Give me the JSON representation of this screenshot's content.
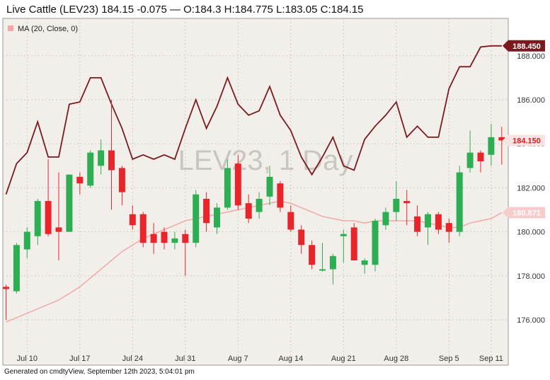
{
  "header": {
    "title": "Live Cattle (LEV23) 184.15 -0.075 — O:184.3 H:184.775 L:183.05 C:184.15"
  },
  "footer": {
    "text": "Generated on cmdtyView, September 12th 2023, 5:04:01 pm"
  },
  "colors": {
    "background": "#f2efea",
    "up": "#2eae52",
    "down": "#e8252a",
    "envelope": "#7a1a1f",
    "ma": "#f0a8a8"
  },
  "chart_data": {
    "type": "candlestick",
    "watermark": "LEV23, 1 Day",
    "legend": [
      {
        "name": "MA (20, Close, 0)"
      }
    ],
    "ylim": [
      174.8,
      189.8
    ],
    "yticks": [
      {
        "value": 176,
        "label": "176.000"
      },
      {
        "value": 178,
        "label": "178.000"
      },
      {
        "value": 180,
        "label": "180.000"
      },
      {
        "value": 182,
        "label": "182.000"
      },
      {
        "value": 184,
        "label": "184.000"
      },
      {
        "value": 186,
        "label": "186.000"
      },
      {
        "value": 188,
        "label": "188.000"
      }
    ],
    "xticks": [
      {
        "index": 2,
        "label": "Jul 10"
      },
      {
        "index": 7,
        "label": "Jul 17"
      },
      {
        "index": 12,
        "label": "Jul 24"
      },
      {
        "index": 17,
        "label": "Jul 31"
      },
      {
        "index": 22,
        "label": "Aug 7"
      },
      {
        "index": 27,
        "label": "Aug 14"
      },
      {
        "index": 32,
        "label": "Aug 21"
      },
      {
        "index": 37,
        "label": "Aug 28"
      },
      {
        "index": 42,
        "label": "Sep 5"
      },
      {
        "index": 46,
        "label": "Sep 11"
      }
    ],
    "candles": [
      {
        "o": 177.5,
        "h": 177.6,
        "l": 176.0,
        "c": 177.4
      },
      {
        "o": 177.3,
        "h": 179.5,
        "l": 177.2,
        "c": 179.4
      },
      {
        "o": 179.2,
        "h": 180.2,
        "l": 178.8,
        "c": 180.0
      },
      {
        "o": 179.8,
        "h": 181.5,
        "l": 179.4,
        "c": 181.4
      },
      {
        "o": 181.4,
        "h": 183.3,
        "l": 179.8,
        "c": 179.9
      },
      {
        "o": 180.2,
        "h": 182.7,
        "l": 178.7,
        "c": 180.0
      },
      {
        "o": 180.0,
        "h": 182.6,
        "l": 180.0,
        "c": 182.6
      },
      {
        "o": 182.5,
        "h": 182.7,
        "l": 181.7,
        "c": 182.2
      },
      {
        "o": 182.1,
        "h": 183.7,
        "l": 182.0,
        "c": 183.6
      },
      {
        "o": 183.0,
        "h": 184.2,
        "l": 182.6,
        "c": 183.7
      },
      {
        "o": 183.7,
        "h": 186.0,
        "l": 181.0,
        "c": 182.8
      },
      {
        "o": 182.9,
        "h": 183.0,
        "l": 181.2,
        "c": 181.8
      },
      {
        "o": 180.8,
        "h": 181.2,
        "l": 180.1,
        "c": 180.3
      },
      {
        "o": 180.8,
        "h": 180.9,
        "l": 179.3,
        "c": 179.5
      },
      {
        "o": 179.9,
        "h": 180.4,
        "l": 179.0,
        "c": 179.5
      },
      {
        "o": 180.0,
        "h": 180.2,
        "l": 179.2,
        "c": 179.5
      },
      {
        "o": 179.5,
        "h": 180.0,
        "l": 179.2,
        "c": 179.7
      },
      {
        "o": 179.9,
        "h": 180.1,
        "l": 178.0,
        "c": 179.5
      },
      {
        "o": 179.5,
        "h": 181.9,
        "l": 179.3,
        "c": 181.7
      },
      {
        "o": 181.5,
        "h": 181.8,
        "l": 180.0,
        "c": 180.4
      },
      {
        "o": 180.2,
        "h": 181.3,
        "l": 179.9,
        "c": 181.1
      },
      {
        "o": 181.1,
        "h": 183.3,
        "l": 181.0,
        "c": 182.9
      },
      {
        "o": 183.1,
        "h": 183.5,
        "l": 181.0,
        "c": 181.2
      },
      {
        "o": 181.3,
        "h": 181.7,
        "l": 180.4,
        "c": 180.6
      },
      {
        "o": 180.9,
        "h": 181.8,
        "l": 180.6,
        "c": 181.5
      },
      {
        "o": 181.6,
        "h": 183.0,
        "l": 181.2,
        "c": 182.5
      },
      {
        "o": 182.2,
        "h": 182.3,
        "l": 180.9,
        "c": 181.1
      },
      {
        "o": 180.9,
        "h": 181.2,
        "l": 180.0,
        "c": 180.1
      },
      {
        "o": 180.1,
        "h": 180.3,
        "l": 179.0,
        "c": 179.4
      },
      {
        "o": 179.4,
        "h": 179.6,
        "l": 178.3,
        "c": 178.5
      },
      {
        "o": 178.3,
        "h": 179.5,
        "l": 178.2,
        "c": 178.3
      },
      {
        "o": 178.3,
        "h": 179.0,
        "l": 177.6,
        "c": 178.9
      },
      {
        "o": 179.8,
        "h": 180.1,
        "l": 178.6,
        "c": 179.9
      },
      {
        "o": 180.2,
        "h": 180.4,
        "l": 178.7,
        "c": 178.7
      },
      {
        "o": 178.5,
        "h": 178.8,
        "l": 178.1,
        "c": 178.7
      },
      {
        "o": 178.5,
        "h": 180.6,
        "l": 178.2,
        "c": 180.5
      },
      {
        "o": 180.3,
        "h": 181.1,
        "l": 180.1,
        "c": 180.9
      },
      {
        "o": 180.9,
        "h": 182.3,
        "l": 180.5,
        "c": 181.5
      },
      {
        "o": 181.4,
        "h": 181.9,
        "l": 180.3,
        "c": 181.3
      },
      {
        "o": 180.7,
        "h": 181.2,
        "l": 179.8,
        "c": 180.0
      },
      {
        "o": 180.2,
        "h": 180.9,
        "l": 179.4,
        "c": 180.8
      },
      {
        "o": 180.8,
        "h": 180.9,
        "l": 179.9,
        "c": 180.1
      },
      {
        "o": 180.4,
        "h": 180.6,
        "l": 179.5,
        "c": 180.0
      },
      {
        "o": 180.0,
        "h": 183.0,
        "l": 179.8,
        "c": 182.7
      },
      {
        "o": 182.9,
        "h": 184.6,
        "l": 182.7,
        "c": 183.6
      },
      {
        "o": 183.6,
        "h": 183.7,
        "l": 182.7,
        "c": 183.2
      },
      {
        "o": 183.5,
        "h": 184.9,
        "l": 183.0,
        "c": 184.3
      },
      {
        "o": 184.3,
        "h": 184.775,
        "l": 183.05,
        "c": 184.15
      }
    ],
    "ma_series": [
      175.9,
      176.1,
      176.3,
      176.5,
      176.7,
      176.9,
      177.2,
      177.5,
      177.9,
      178.3,
      178.7,
      179.1,
      179.4,
      179.7,
      179.9,
      180.1,
      180.3,
      180.5,
      180.6,
      180.7,
      180.8,
      180.9,
      181.0,
      181.1,
      181.2,
      181.3,
      181.4,
      181.3,
      181.1,
      180.9,
      180.7,
      180.6,
      180.5,
      180.5,
      180.4,
      180.5,
      180.5,
      180.5,
      180.5,
      180.5,
      180.4,
      180.3,
      180.2,
      180.2,
      180.4,
      180.5,
      180.6,
      180.871
    ],
    "envelope_series": [
      181.7,
      183.1,
      183.6,
      185.0,
      183.4,
      183.4,
      185.8,
      185.9,
      187.0,
      187.0,
      185.8,
      184.7,
      183.3,
      183.5,
      183.3,
      183.5,
      183.3,
      184.7,
      186.0,
      184.7,
      185.7,
      187.0,
      185.8,
      185.3,
      185.5,
      186.6,
      185.3,
      184.6,
      183.4,
      182.6,
      183.4,
      184.3,
      183.0,
      182.8,
      184.2,
      184.8,
      185.3,
      185.9,
      184.3,
      184.8,
      184.3,
      184.3,
      186.5,
      187.5,
      187.5,
      188.4,
      188.45,
      188.45
    ],
    "last_price": {
      "label": "184.150",
      "value": 184.15
    },
    "ma_last": {
      "label": "180.871",
      "value": 180.871
    },
    "envelope_last": {
      "label": "188.450",
      "value": 188.45
    }
  }
}
